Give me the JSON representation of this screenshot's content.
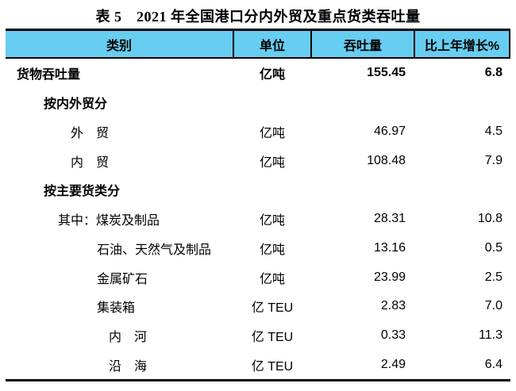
{
  "title": "表 5　2021 年全国港口分内外贸及重点货类吞吐量",
  "table": {
    "header_bg": "#67CDF1",
    "border_color": "#000000",
    "headers": [
      "类别",
      "单位",
      "吞吐量",
      "比上年增长%"
    ],
    "rows": [
      {
        "prefix": "",
        "category": "货物吞吐量",
        "unit": "亿吨",
        "throughput": "155.45",
        "growth": "6.8",
        "bold": true,
        "indent": 0
      },
      {
        "prefix": "",
        "category": "按内外贸分",
        "unit": "",
        "throughput": "",
        "growth": "",
        "bold": true,
        "indent": 1
      },
      {
        "prefix": "",
        "category": "外　贸",
        "unit": "亿吨",
        "throughput": "46.97",
        "growth": "4.5",
        "bold": false,
        "indent": 2
      },
      {
        "prefix": "",
        "category": "内　贸",
        "unit": "亿吨",
        "throughput": "108.48",
        "growth": "7.9",
        "bold": false,
        "indent": 2
      },
      {
        "prefix": "",
        "category": "按主要货类分",
        "unit": "",
        "throughput": "",
        "growth": "",
        "bold": true,
        "indent": 1
      },
      {
        "prefix": "其中：",
        "category": "煤炭及制品",
        "unit": "亿吨",
        "throughput": "28.31",
        "growth": "10.8",
        "bold": false,
        "indent": 3
      },
      {
        "prefix": "",
        "category": "石油、天然气及制品",
        "unit": "亿吨",
        "throughput": "13.16",
        "growth": "0.5",
        "bold": false,
        "indent": 4
      },
      {
        "prefix": "",
        "category": "金属矿石",
        "unit": "亿吨",
        "throughput": "23.99",
        "growth": "2.5",
        "bold": false,
        "indent": 4
      },
      {
        "prefix": "",
        "category": "集装箱",
        "unit": "亿 TEU",
        "throughput": "2.83",
        "growth": "7.0",
        "bold": false,
        "indent": 4
      },
      {
        "prefix": "",
        "category": "内　河",
        "unit": "亿 TEU",
        "throughput": "0.33",
        "growth": "11.3",
        "bold": false,
        "indent": 5
      },
      {
        "prefix": "",
        "category": "沿　海",
        "unit": "亿 TEU",
        "throughput": "2.49",
        "growth": "6.4",
        "bold": false,
        "indent": 5
      }
    ]
  }
}
